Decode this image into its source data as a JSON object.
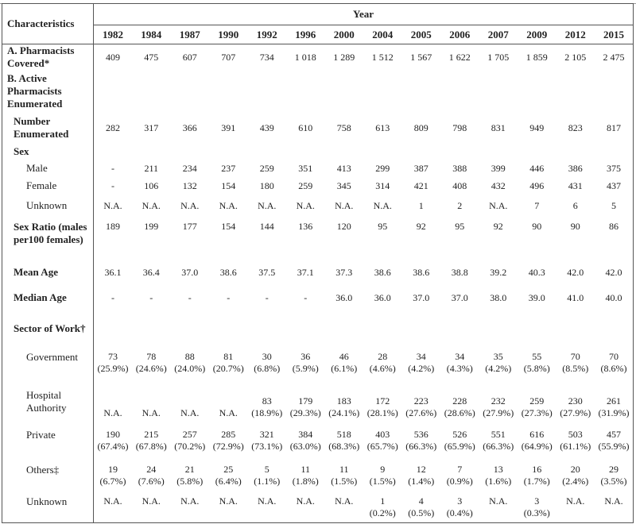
{
  "header": {
    "characteristics": "Characteristics",
    "year": "Year"
  },
  "years": [
    "1982",
    "1984",
    "1987",
    "1990",
    "1992",
    "1996",
    "2000",
    "2004",
    "2005",
    "2006",
    "2007",
    "2009",
    "2012",
    "2015"
  ],
  "rows": [
    {
      "label": "A. Pharmacists Covered*",
      "style": "",
      "h": 32,
      "values": [
        "409",
        "475",
        "607",
        "707",
        "734",
        "1 018",
        "1 289",
        "1 512",
        "1 567",
        "1 622",
        "1 705",
        "1 859",
        "2 105",
        "2 475"
      ]
    },
    {
      "label": "B. Active Pharmacists Enumerated",
      "style": "",
      "h": 54,
      "values": []
    },
    {
      "label": "Number Enumerated",
      "style": "sub-bold",
      "h": 38,
      "values": [
        "282",
        "317",
        "366",
        "391",
        "439",
        "610",
        "758",
        "613",
        "809",
        "798",
        "831",
        "949",
        "823",
        "817"
      ]
    },
    {
      "label": "Sex",
      "style": "sub-bold",
      "h": 22,
      "values": []
    },
    {
      "label": "Male",
      "style": "sub2",
      "h": 20,
      "values": [
        "-",
        "211",
        "234",
        "237",
        "259",
        "351",
        "413",
        "299",
        "387",
        "388",
        "399",
        "446",
        "386",
        "375"
      ]
    },
    {
      "label": "Female",
      "style": "sub2",
      "h": 24,
      "values": [
        "-",
        "106",
        "132",
        "154",
        "180",
        "259",
        "345",
        "314",
        "421",
        "408",
        "432",
        "496",
        "431",
        "437"
      ]
    },
    {
      "label": "Unknown",
      "style": "sub2",
      "h": 26,
      "values": [
        "N.A.",
        "N.A.",
        "N.A.",
        "N.A.",
        "N.A.",
        "N.A.",
        "N.A.",
        "N.A.",
        "1",
        "2",
        "N.A.",
        "7",
        "6",
        "5"
      ]
    },
    {
      "label": "Sex Ratio (males per100 females)",
      "style": "sub-bold top",
      "h": 56,
      "values": [
        "189",
        "199",
        "177",
        "154",
        "144",
        "136",
        "120",
        "95",
        "92",
        "95",
        "92",
        "90",
        "90",
        "86"
      ]
    },
    {
      "label": "Mean Age",
      "style": "sub-bold",
      "h": 30,
      "values": [
        "36.1",
        "36.4",
        "37.0",
        "38.6",
        "37.5",
        "37.1",
        "37.3",
        "38.6",
        "38.6",
        "38.8",
        "39.2",
        "40.3",
        "42.0",
        "42.0"
      ]
    },
    {
      "label": "Median Age",
      "style": "sub-bold",
      "h": 34,
      "values": [
        "-",
        "-",
        "-",
        "-",
        "-",
        "-",
        "36.0",
        "36.0",
        "37.0",
        "37.0",
        "38.0",
        "39.0",
        "41.0",
        "40.0"
      ]
    },
    {
      "label": "Sector of Work†",
      "style": "sub-bold",
      "h": 44,
      "values": []
    },
    {
      "label": "Government",
      "style": "sub2 top",
      "h": 42,
      "values": [
        "73\n(25.9%)",
        "78\n(24.6%)",
        "88\n(24.0%)",
        "81\n(20.7%)",
        "30\n(6.8%)",
        "36\n(5.9%)",
        "46\n(6.1%)",
        "28\n(4.6%)",
        "34\n(4.2%)",
        "34\n(4.3%)",
        "35\n(4.2%)",
        "55\n(5.8%)",
        "70\n(8.5%)",
        "70\n(8.6%)"
      ]
    },
    {
      "label": "Hospital Authority",
      "style": "sub2 hosp",
      "h": 56,
      "values": [
        "N.A.",
        "N.A.",
        "N.A.",
        "N.A.",
        "83\n(18.9%)",
        "179\n(29.3%)",
        "183\n(24.1%)",
        "172\n(28.1%)",
        "223\n(27.6%)",
        "228\n(28.6%)",
        "232\n(27.9%)",
        "259\n(27.3%)",
        "230\n(27.9%)",
        "261\n(31.9%)"
      ]
    },
    {
      "label": "Private",
      "style": "sub2 top",
      "h": 44,
      "values": [
        "190\n(67.4%)",
        "215\n(67.8%)",
        "257\n(70.2%)",
        "285\n(72.9%)",
        "321\n(73.1%)",
        "384\n(63.0%)",
        "518\n(68.3%)",
        "403\n(65.7%)",
        "536\n(66.3%)",
        "526\n(65.9%)",
        "551\n(66.3%)",
        "616\n(64.9%)",
        "503\n(61.1%)",
        "457\n(55.9%)"
      ]
    },
    {
      "label": "Others‡",
      "style": "sub2 top",
      "h": 40,
      "values": [
        "19\n(6.7%)",
        "24\n(7.6%)",
        "21\n(5.8%)",
        "25\n(6.4%)",
        "5\n(1.1%)",
        "11\n(1.8%)",
        "11\n(1.5%)",
        "9\n(1.5%)",
        "12\n(1.4%)",
        "7\n(0.9%)",
        "13\n(1.6%)",
        "16\n(1.7%)",
        "20\n(2.4%)",
        "29\n(3.5%)"
      ]
    },
    {
      "label": "Unknown",
      "style": "sub2 top",
      "h": 40,
      "values": [
        "N.A.",
        "N.A.",
        "N.A.",
        "N.A.",
        "N.A.",
        "N.A.",
        "N.A.",
        "1\n(0.2%)",
        "4\n(0.5%)",
        "3\n(0.4%)",
        "N.A.",
        "3\n(0.3%)",
        "N.A.",
        "N.A."
      ]
    }
  ]
}
